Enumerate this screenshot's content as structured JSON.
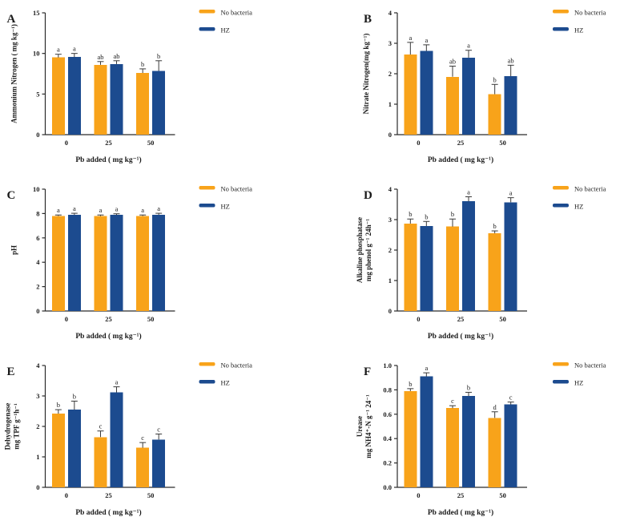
{
  "figure_title": "",
  "legend_labels": [
    "No bacteria",
    "HZ"
  ],
  "colors": {
    "no_bacteria": "#F8A31A",
    "hz": "#1C4B8F",
    "axis": "#2b2b2b",
    "error_bar": "#3a3a3a",
    "text": "#1a1a1a",
    "background": "#ffffff"
  },
  "chart_data": [
    {
      "type": "bar",
      "panel_label": "A",
      "ylabel_lines": [
        "Ammonium Nitrogen ( mg kg⁻¹)"
      ],
      "xlabel": "Pb added ( mg kg⁻¹)",
      "categories": [
        "0",
        "25",
        "50"
      ],
      "ylim": [
        0,
        15
      ],
      "yticks": [
        "0",
        "5",
        "10",
        "15"
      ],
      "legend_position": "right-top",
      "grid": false,
      "series": [
        {
          "name": "No bacteria",
          "color": "#F8A31A",
          "values": [
            9.5,
            8.6,
            7.6
          ],
          "errors": [
            0.4,
            0.4,
            0.5
          ],
          "letters": [
            "a",
            "ab",
            "b"
          ]
        },
        {
          "name": "HZ",
          "color": "#1C4B8F",
          "values": [
            9.55,
            8.7,
            7.85
          ],
          "errors": [
            0.45,
            0.4,
            1.25
          ],
          "letters": [
            "a",
            "ab",
            "b"
          ]
        }
      ]
    },
    {
      "type": "bar",
      "panel_label": "B",
      "ylabel_lines": [
        "Nitrate Nitrogen(mg kg⁻¹)"
      ],
      "xlabel": "Pb added ( mg kg⁻¹)",
      "categories": [
        "0",
        "25",
        "50"
      ],
      "ylim": [
        0,
        4
      ],
      "yticks": [
        "0",
        "1",
        "2",
        "3",
        "4"
      ],
      "legend_position": "right-top",
      "grid": false,
      "series": [
        {
          "name": "No bacteria",
          "color": "#F8A31A",
          "values": [
            2.63,
            1.9,
            1.33
          ],
          "errors": [
            0.4,
            0.35,
            0.32
          ],
          "letters": [
            "a",
            "ab",
            "b"
          ]
        },
        {
          "name": "HZ",
          "color": "#1C4B8F",
          "values": [
            2.75,
            2.53,
            1.92
          ],
          "errors": [
            0.2,
            0.24,
            0.36
          ],
          "letters": [
            "a",
            "a",
            "ab"
          ]
        }
      ]
    },
    {
      "type": "bar",
      "panel_label": "C",
      "ylabel_lines": [
        "pH"
      ],
      "xlabel": "Pb added ( mg kg⁻¹)",
      "categories": [
        "0",
        "25",
        "50"
      ],
      "ylim": [
        0,
        10
      ],
      "yticks": [
        "0",
        "2",
        "4",
        "6",
        "8",
        "10"
      ],
      "legend_position": "right-top",
      "grid": false,
      "series": [
        {
          "name": "No bacteria",
          "color": "#F8A31A",
          "values": [
            7.8,
            7.8,
            7.8
          ],
          "errors": [
            0.08,
            0.08,
            0.08
          ],
          "letters": [
            "a",
            "a",
            "a"
          ]
        },
        {
          "name": "HZ",
          "color": "#1C4B8F",
          "values": [
            7.9,
            7.88,
            7.9
          ],
          "errors": [
            0.12,
            0.1,
            0.12
          ],
          "letters": [
            "a",
            "a",
            "a"
          ]
        }
      ]
    },
    {
      "type": "bar",
      "panel_label": "D",
      "ylabel_lines": [
        "Alkaline phosphatase",
        "mg phenol g⁻¹ 24h⁻¹"
      ],
      "xlabel": "Pb added ( mg kg⁻¹)",
      "categories": [
        "0",
        "25",
        "50"
      ],
      "ylim": [
        0,
        4
      ],
      "yticks": [
        "0",
        "1",
        "2",
        "3",
        "4"
      ],
      "legend_position": "right-top",
      "grid": false,
      "series": [
        {
          "name": "No bacteria",
          "color": "#F8A31A",
          "values": [
            2.87,
            2.77,
            2.55
          ],
          "errors": [
            0.15,
            0.25,
            0.08
          ],
          "letters": [
            "b",
            "b",
            "b"
          ]
        },
        {
          "name": "HZ",
          "color": "#1C4B8F",
          "values": [
            2.79,
            3.6,
            3.57
          ],
          "errors": [
            0.15,
            0.15,
            0.15
          ],
          "letters": [
            "b",
            "a",
            "a"
          ]
        }
      ]
    },
    {
      "type": "bar",
      "panel_label": "E",
      "ylabel_lines": [
        "Dehydrogenase",
        "mg TPF g⁻¹h⁻¹"
      ],
      "xlabel": "Pb added ( mg kg⁻¹)",
      "categories": [
        "0",
        "25",
        "50"
      ],
      "ylim": [
        0,
        4
      ],
      "yticks": [
        "0",
        "1",
        "2",
        "3",
        "4"
      ],
      "legend_position": "right-top",
      "grid": false,
      "series": [
        {
          "name": "No bacteria",
          "color": "#F8A31A",
          "values": [
            2.42,
            1.65,
            1.3
          ],
          "errors": [
            0.13,
            0.2,
            0.17
          ],
          "letters": [
            "b",
            "c",
            "c"
          ]
        },
        {
          "name": "HZ",
          "color": "#1C4B8F",
          "values": [
            2.55,
            3.12,
            1.57
          ],
          "errors": [
            0.28,
            0.18,
            0.18
          ],
          "letters": [
            "b",
            "a",
            "c"
          ]
        }
      ]
    },
    {
      "type": "bar",
      "panel_label": "F",
      "ylabel_lines": [
        "Urease",
        "mg NH4⁺-N g⁻¹ 24⁻¹"
      ],
      "xlabel": "Pb added ( mg kg⁻¹)",
      "categories": [
        "0",
        "25",
        "50"
      ],
      "ylim": [
        0,
        1.0
      ],
      "yticks": [
        "0.0",
        "0.2",
        "0.4",
        "0.6",
        "0.8",
        "1.0"
      ],
      "legend_position": "right-top",
      "grid": false,
      "series": [
        {
          "name": "No bacteria",
          "color": "#F8A31A",
          "values": [
            0.79,
            0.65,
            0.57
          ],
          "errors": [
            0.02,
            0.02,
            0.05
          ],
          "letters": [
            "b",
            "c",
            "d"
          ]
        },
        {
          "name": "HZ",
          "color": "#1C4B8F",
          "values": [
            0.91,
            0.75,
            0.68
          ],
          "errors": [
            0.03,
            0.03,
            0.02
          ],
          "letters": [
            "a",
            "b",
            "c"
          ]
        }
      ]
    }
  ]
}
